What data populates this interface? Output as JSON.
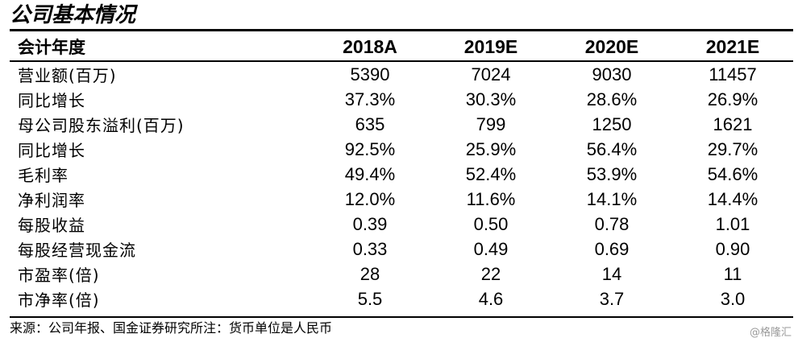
{
  "title": "公司基本情况",
  "table": {
    "header": {
      "label": "会计年度",
      "years": [
        "2018A",
        "2019E",
        "2020E",
        "2021E"
      ]
    },
    "rows": [
      {
        "label": "营业额(百万)",
        "values": [
          "5390",
          "7024",
          "9030",
          "11457"
        ]
      },
      {
        "label": "同比增长",
        "values": [
          "37.3%",
          "30.3%",
          "28.6%",
          "26.9%"
        ]
      },
      {
        "label": "母公司股东溢利(百万)",
        "values": [
          "635",
          "799",
          "1250",
          "1621"
        ]
      },
      {
        "label": "同比增长",
        "values": [
          "92.5%",
          "25.9%",
          "56.4%",
          "29.7%"
        ]
      },
      {
        "label": "毛利率",
        "values": [
          "49.4%",
          "52.4%",
          "53.9%",
          "54.6%"
        ]
      },
      {
        "label": "净利润率",
        "values": [
          "12.0%",
          "11.6%",
          "14.1%",
          "14.4%"
        ]
      },
      {
        "label": "每股收益",
        "values": [
          "0.39",
          "0.50",
          "0.78",
          "1.01"
        ]
      },
      {
        "label": "每股经营现金流",
        "values": [
          "0.33",
          "0.49",
          "0.69",
          "0.90"
        ]
      },
      {
        "label": "市盈率(倍)",
        "values": [
          "28",
          "22",
          "14",
          "11"
        ]
      },
      {
        "label": "市净率(倍)",
        "values": [
          "5.5",
          "4.6",
          "3.7",
          "3.0"
        ]
      }
    ]
  },
  "footnote": "来源：公司年报、国金证券研究所注：货币单位是人民币",
  "watermark": "@格隆汇"
}
